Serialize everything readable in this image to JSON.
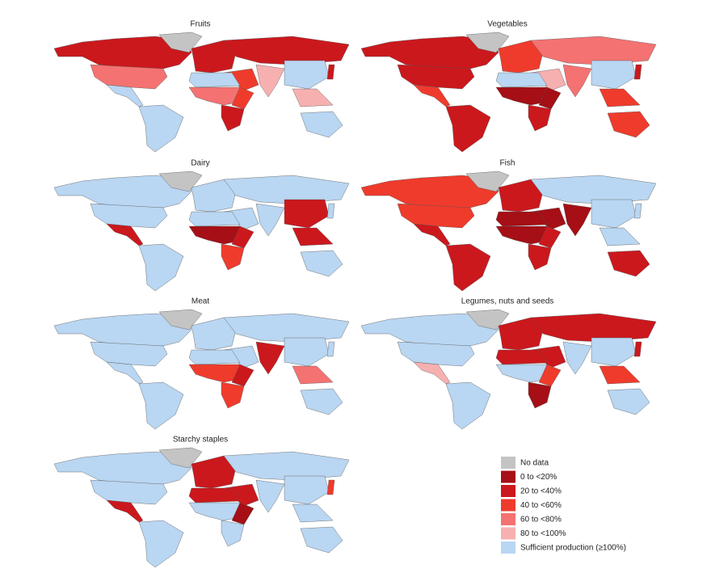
{
  "panels": [
    {
      "title": "Fruits"
    },
    {
      "title": "Vegetables"
    },
    {
      "title": "Dairy"
    },
    {
      "title": "Fish"
    },
    {
      "title": "Meat"
    },
    {
      "title": "Legumes, nuts and seeds"
    },
    {
      "title": "Starchy staples"
    }
  ],
  "legend": {
    "items": [
      {
        "label": "No data",
        "color": "#c4c4c4"
      },
      {
        "label": "0 to <20%",
        "color": "#a50f15"
      },
      {
        "label": "20 to <40%",
        "color": "#cb181d"
      },
      {
        "label": "40 to <60%",
        "color": "#ef3b2c"
      },
      {
        "label": "60 to <80%",
        "color": "#f47272"
      },
      {
        "label": "80 to <100%",
        "color": "#f7b0b0"
      },
      {
        "label": "Sufficient production (≥100%)",
        "color": "#b9d6f2"
      }
    ]
  }
}
